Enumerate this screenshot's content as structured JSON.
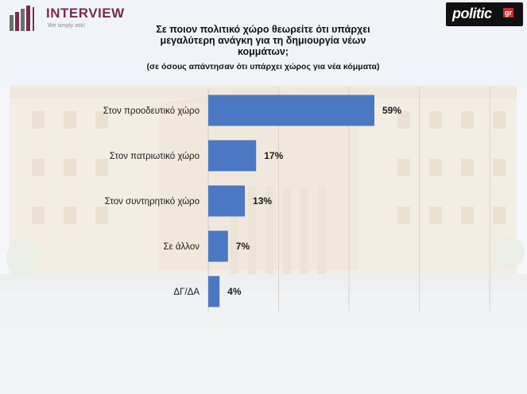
{
  "header": {
    "interview_logo": {
      "name": "INTERVIEW",
      "tagline": "We simply ask!"
    },
    "politic_logo": {
      "name": "politic",
      "suffix": "gr"
    }
  },
  "chart_data": {
    "type": "bar",
    "orientation": "horizontal",
    "title_lines": [
      "Σε ποιον πολιτικό χώρο θεωρείτε ότι υπάρχει",
      "μεγαλύτερη ανάγκη για τη δημιουργία νέων",
      "κομμάτων;"
    ],
    "subtitle": "(σε όσους απάντησαν ότι υπάρχει χώρος για νέα κόμματα)",
    "categories": [
      "Στον προοδευτικό χώρο",
      "Στον πατριωτικό χώρο",
      "Στον συντηρητικό χώρο",
      "Σε άλλον",
      "ΔΓ/ΔΑ"
    ],
    "values": [
      59,
      17,
      13,
      7,
      4
    ],
    "value_labels": [
      "59%",
      "17%",
      "13%",
      "7%",
      "4%"
    ],
    "unit": "%",
    "xlim": [
      0,
      100
    ],
    "bar_color": "#4a78c2",
    "grid": true
  }
}
